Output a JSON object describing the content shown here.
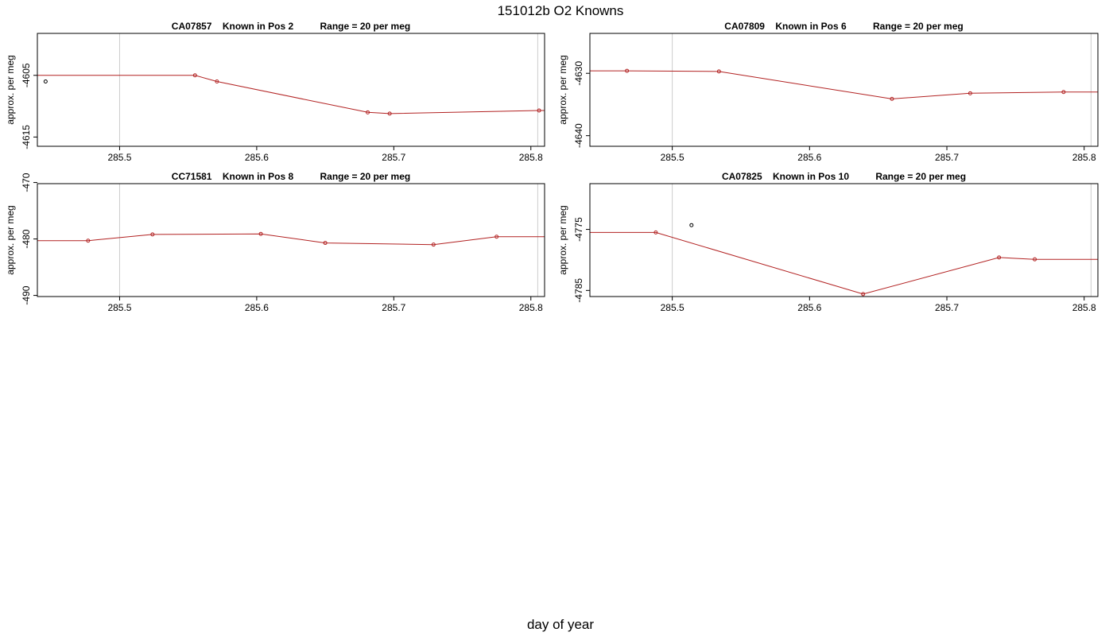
{
  "figure": {
    "title": "151012b   O2 Knowns",
    "xlabel": "day of year"
  },
  "chart_data": [
    {
      "type": "line",
      "title": "CA07857    Known in Pos 2          Range = 20 per meg",
      "ylabel": "approx. per meg",
      "xlim": [
        285.44,
        285.81
      ],
      "ylim": [
        -4616.5,
        -4598.2
      ],
      "x_ticks": [
        285.5,
        285.6,
        285.7,
        285.8
      ],
      "x_tick_labels": [
        "285.5",
        "285.6",
        "285.7",
        "285.8"
      ],
      "y_ticks": [
        -4605,
        -4615
      ],
      "y_tick_labels": [
        "-4605",
        "-4615"
      ],
      "vlines": [
        285.5,
        285.805
      ],
      "series": [
        {
          "color": "#b22222",
          "x": [
            285.436,
            285.555,
            285.571,
            285.681,
            285.697,
            285.806,
            285.821
          ],
          "y": [
            -4605.0,
            -4605.0,
            -4606.0,
            -4611.0,
            -4611.2,
            -4610.7,
            -4610.7
          ]
        }
      ],
      "points": [
        {
          "color": "#b22222",
          "x": [
            285.555,
            285.571,
            285.681,
            285.697,
            285.806
          ],
          "y": [
            -4605.0,
            -4606.0,
            -4611.0,
            -4611.2,
            -4610.7
          ]
        },
        {
          "color": "#000000",
          "x": [
            285.446
          ],
          "y": [
            -4606.0
          ]
        }
      ]
    },
    {
      "type": "line",
      "title": "CA07809    Known in Pos 6          Range = 20 per meg",
      "ylabel": "approx. per meg",
      "xlim": [
        285.44,
        285.81
      ],
      "ylim": [
        -4641.7,
        -4623.6
      ],
      "x_ticks": [
        285.5,
        285.6,
        285.7,
        285.8
      ],
      "x_tick_labels": [
        "285.5",
        "285.6",
        "285.7",
        "285.8"
      ],
      "y_ticks": [
        -4630,
        -4640
      ],
      "y_tick_labels": [
        "-4630",
        "-4640"
      ],
      "vlines": [
        285.5,
        285.805
      ],
      "series": [
        {
          "color": "#b22222",
          "x": [
            285.436,
            285.467,
            285.534,
            285.66,
            285.717,
            285.785,
            285.821
          ],
          "y": [
            -4629.6,
            -4629.6,
            -4629.7,
            -4634.1,
            -4633.2,
            -4633.0,
            -4633.0
          ]
        }
      ],
      "points": [
        {
          "color": "#b22222",
          "x": [
            285.467,
            285.534,
            285.66,
            285.717,
            285.785
          ],
          "y": [
            -4629.6,
            -4629.7,
            -4634.1,
            -4633.2,
            -4633.0
          ]
        }
      ]
    },
    {
      "type": "line",
      "title": "CC71581    Known in Pos 8          Range = 20 per meg",
      "ylabel": "approx. per meg",
      "xlim": [
        285.44,
        285.81
      ],
      "ylim": [
        -490.2,
        -470.2
      ],
      "x_ticks": [
        285.5,
        285.6,
        285.7,
        285.8
      ],
      "x_tick_labels": [
        "285.5",
        "285.6",
        "285.7",
        "285.8"
      ],
      "y_ticks": [
        -470,
        -480,
        -490
      ],
      "y_tick_labels": [
        "-470",
        "-480",
        "-490"
      ],
      "vlines": [
        285.5,
        285.805
      ],
      "series": [
        {
          "color": "#b22222",
          "x": [
            285.436,
            285.477,
            285.524,
            285.603,
            285.65,
            285.729,
            285.775,
            285.821
          ],
          "y": [
            -480.3,
            -480.3,
            -479.2,
            -479.1,
            -480.7,
            -481.0,
            -479.6,
            -479.6
          ]
        }
      ],
      "points": [
        {
          "color": "#b22222",
          "x": [
            285.477,
            285.524,
            285.603,
            285.65,
            285.729,
            285.775
          ],
          "y": [
            -480.3,
            -479.2,
            -479.1,
            -480.7,
            -481.0,
            -479.6
          ]
        }
      ]
    },
    {
      "type": "line",
      "title": "CA07825    Known in Pos 10          Range = 20 per meg",
      "ylabel": "approx. per meg",
      "xlim": [
        285.44,
        285.81
      ],
      "ylim": [
        -4786.0,
        -4767.5
      ],
      "x_ticks": [
        285.5,
        285.6,
        285.7,
        285.8
      ],
      "x_tick_labels": [
        "285.5",
        "285.6",
        "285.7",
        "285.8"
      ],
      "y_ticks": [
        -4775,
        -4785
      ],
      "y_tick_labels": [
        "-4775",
        "-4785"
      ],
      "vlines": [
        285.5,
        285.805
      ],
      "series": [
        {
          "color": "#b22222",
          "x": [
            285.436,
            285.488,
            285.639,
            285.738,
            285.764,
            285.821
          ],
          "y": [
            -4775.5,
            -4775.5,
            -4785.6,
            -4779.6,
            -4779.9,
            -4779.9
          ]
        }
      ],
      "points": [
        {
          "color": "#b22222",
          "x": [
            285.488,
            285.639,
            285.738,
            285.764
          ],
          "y": [
            -4775.5,
            -4785.6,
            -4779.6,
            -4779.9
          ]
        },
        {
          "color": "#000000",
          "x": [
            285.514
          ],
          "y": [
            -4774.3
          ]
        }
      ]
    }
  ]
}
